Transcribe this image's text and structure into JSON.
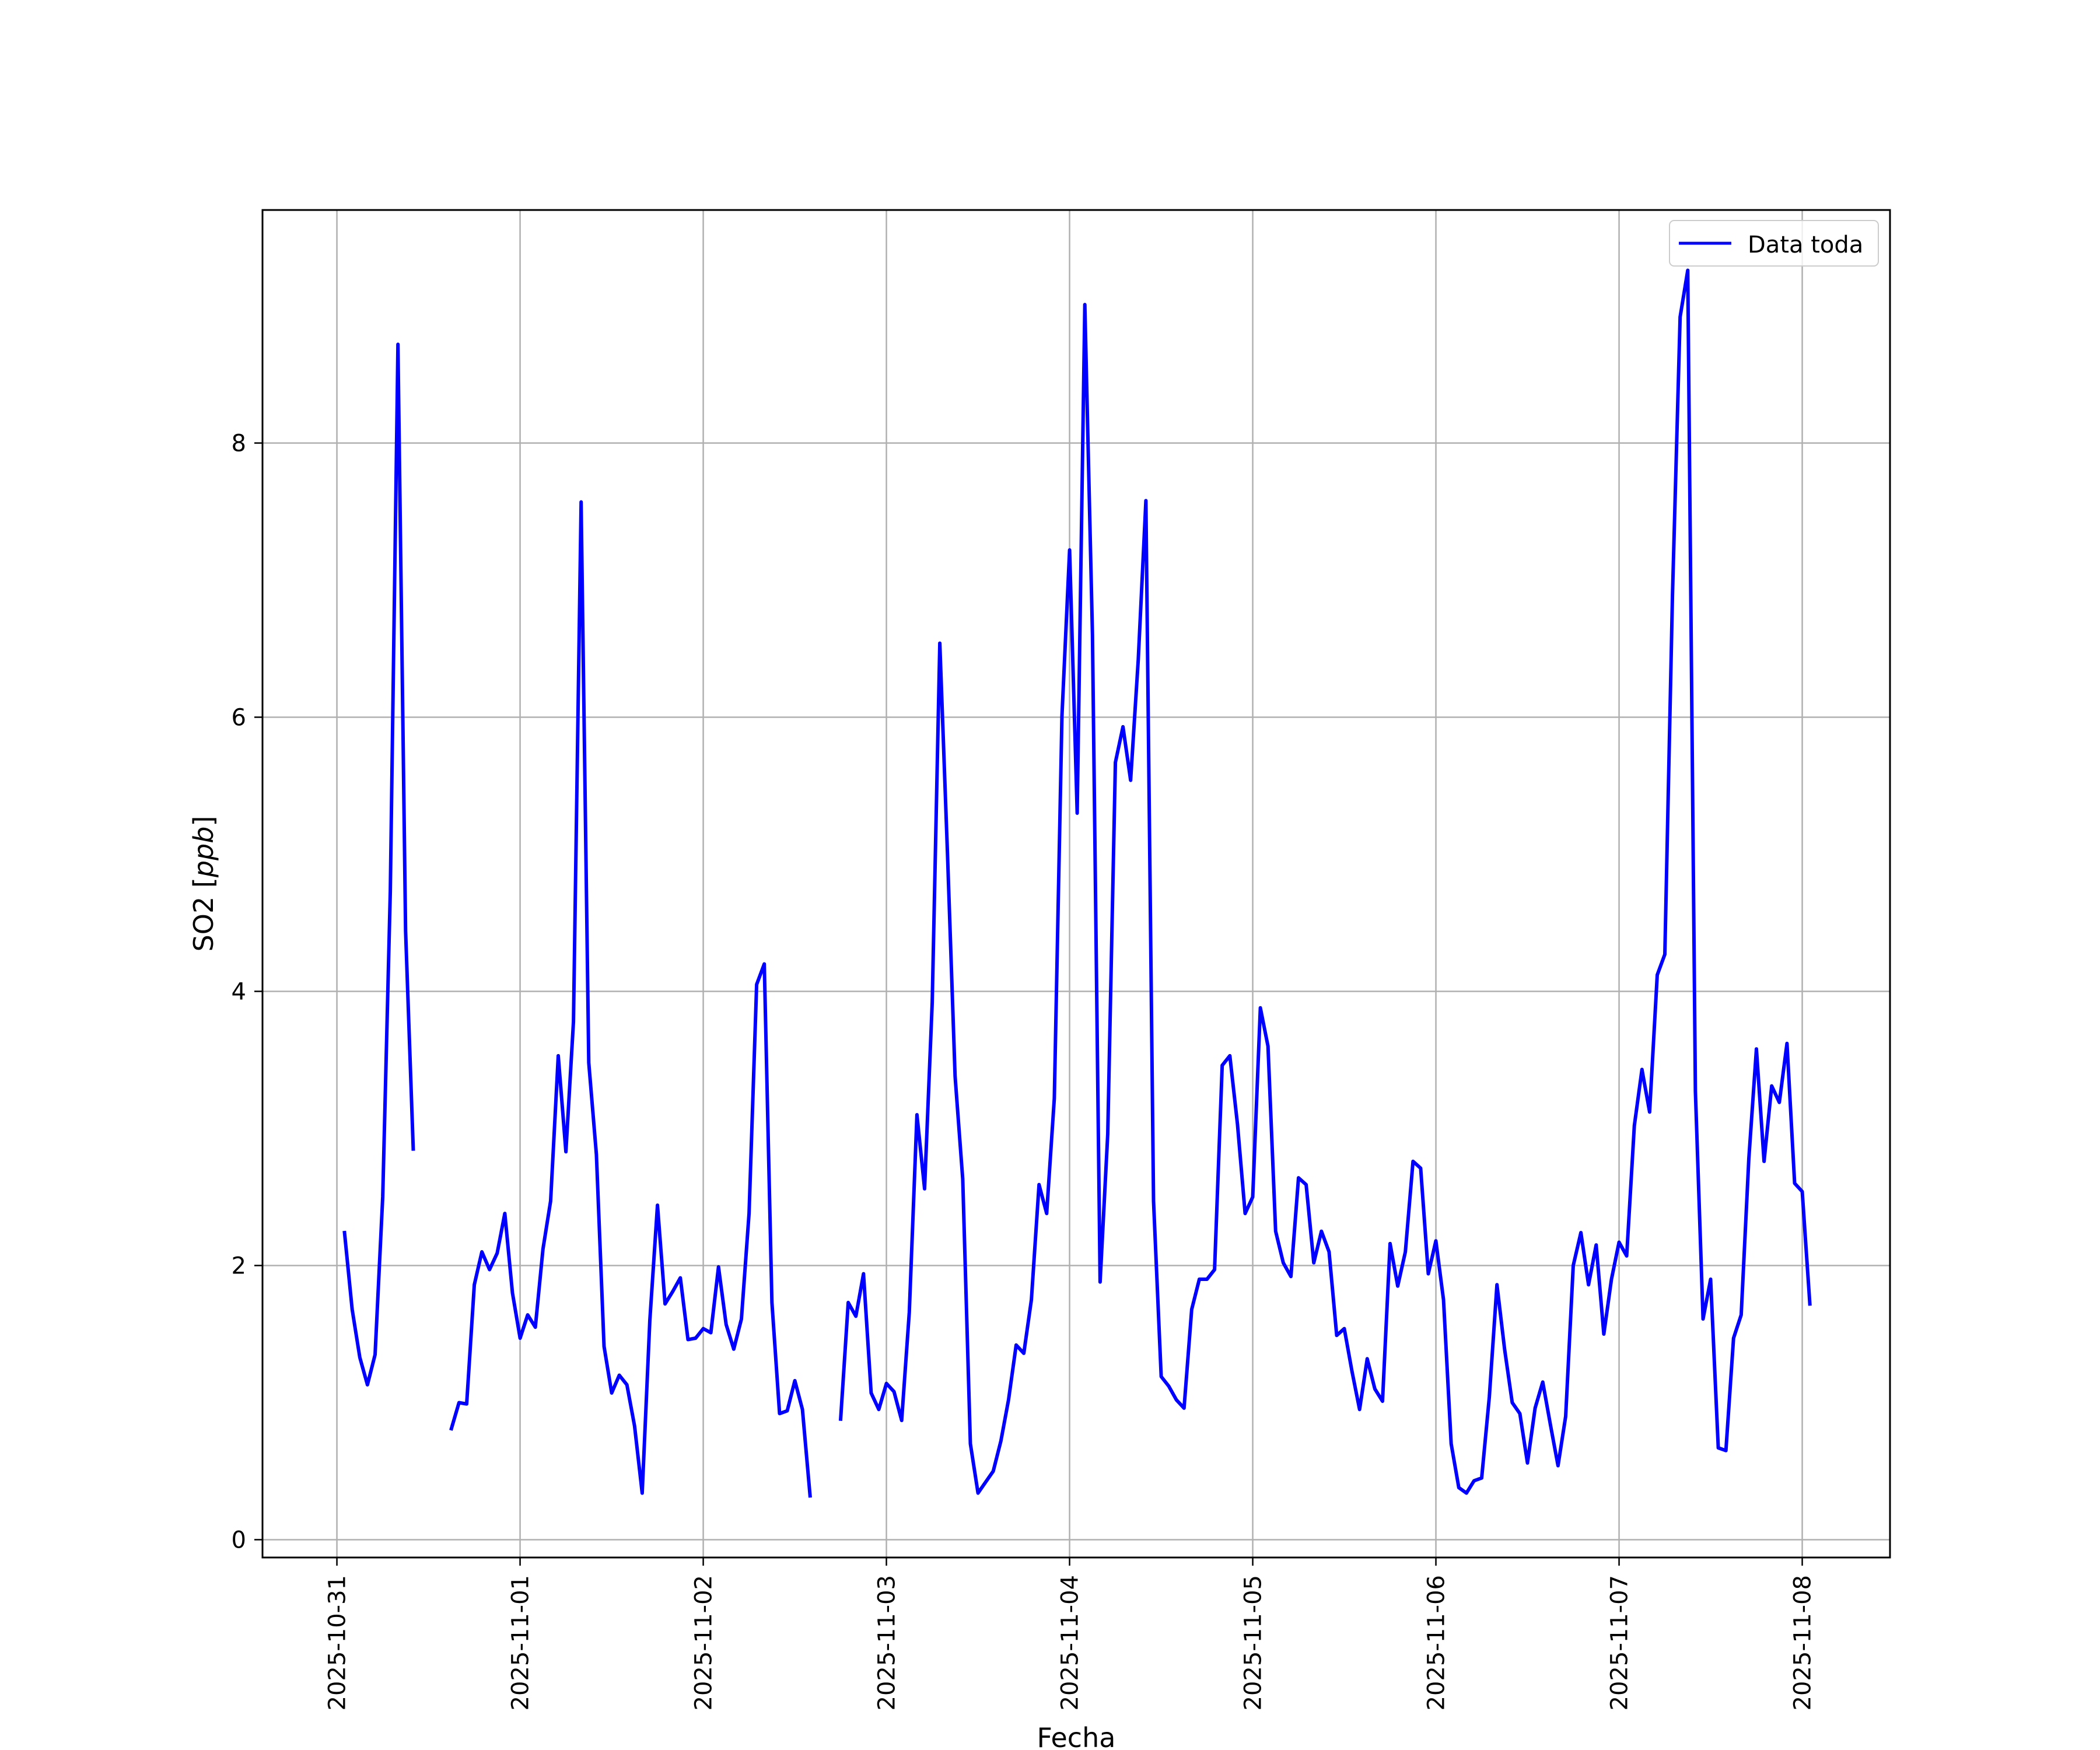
{
  "chart_data": {
    "type": "line",
    "xlabel": "Fecha",
    "ylabel_main": "SO2 [",
    "ylabel_unit": "ppb",
    "ylabel_close": "]",
    "ylim": [
      -0.13,
      9.7
    ],
    "xlim": [
      "2025-10-30T14:15",
      "2025-11-08T11:30"
    ],
    "grid": true,
    "legend_position": "upper right",
    "x_ticks": [
      "2025-10-31",
      "2025-11-01",
      "2025-11-02",
      "2025-11-03",
      "2025-11-04",
      "2025-11-05",
      "2025-11-06",
      "2025-11-07",
      "2025-11-08"
    ],
    "y_ticks": [
      0,
      2,
      4,
      6,
      8
    ],
    "series": [
      {
        "name": "Data toda",
        "color": "#0000ff",
        "start": "2025-10-31T01:00",
        "step_hours": 1,
        "values": [
          2.24,
          1.68,
          1.33,
          1.13,
          1.35,
          2.5,
          4.73,
          8.72,
          4.44,
          2.85,
          null,
          null,
          null,
          null,
          0.81,
          1.0,
          0.99,
          1.86,
          2.1,
          1.97,
          2.09,
          2.38,
          1.8,
          1.47,
          1.64,
          1.55,
          2.12,
          2.47,
          3.53,
          2.83,
          3.78,
          7.57,
          3.48,
          2.81,
          1.41,
          1.07,
          1.2,
          1.13,
          0.83,
          0.34,
          1.6,
          2.44,
          1.72,
          1.81,
          1.91,
          1.46,
          1.47,
          1.54,
          1.51,
          1.99,
          1.57,
          1.39,
          1.61,
          2.38,
          4.05,
          4.2,
          1.73,
          0.92,
          0.94,
          1.16,
          0.95,
          0.32,
          null,
          null,
          null,
          0.88,
          1.73,
          1.63,
          1.94,
          1.07,
          0.95,
          1.14,
          1.08,
          0.87,
          1.66,
          3.1,
          2.56,
          3.92,
          6.54,
          5.01,
          3.38,
          2.63,
          0.7,
          0.34,
          0.42,
          0.5,
          0.72,
          1.02,
          1.42,
          1.36,
          1.75,
          2.59,
          2.38,
          3.22,
          6.01,
          7.22,
          5.3,
          9.01,
          6.6,
          1.88,
          2.96,
          5.67,
          5.93,
          5.54,
          6.42,
          7.58,
          2.47,
          1.19,
          1.12,
          1.02,
          0.96,
          1.68,
          1.9,
          1.9,
          1.97,
          3.46,
          3.53,
          3.03,
          2.38,
          2.5,
          3.88,
          3.6,
          2.25,
          2.02,
          1.92,
          2.64,
          2.59,
          2.02,
          2.25,
          2.1,
          1.49,
          1.54,
          1.23,
          0.95,
          1.32,
          1.1,
          1.01,
          2.16,
          1.85,
          2.1,
          2.76,
          2.71,
          1.94,
          2.18,
          1.75,
          0.7,
          0.38,
          0.34,
          0.43,
          0.45,
          1.04,
          1.86,
          1.39,
          1.0,
          0.92,
          0.56,
          0.96,
          1.15,
          0.84,
          0.54,
          0.9,
          2.0,
          2.24,
          1.86,
          2.15,
          1.5,
          1.9,
          2.17,
          2.07,
          3.02,
          3.43,
          3.12,
          4.12,
          4.27,
          6.89,
          8.92,
          9.26,
          3.27,
          1.61,
          1.9,
          0.67,
          0.65,
          1.47,
          1.64,
          2.78,
          3.58,
          2.76,
          3.31,
          3.19,
          3.62,
          2.6,
          2.54,
          1.72
        ]
      }
    ]
  }
}
